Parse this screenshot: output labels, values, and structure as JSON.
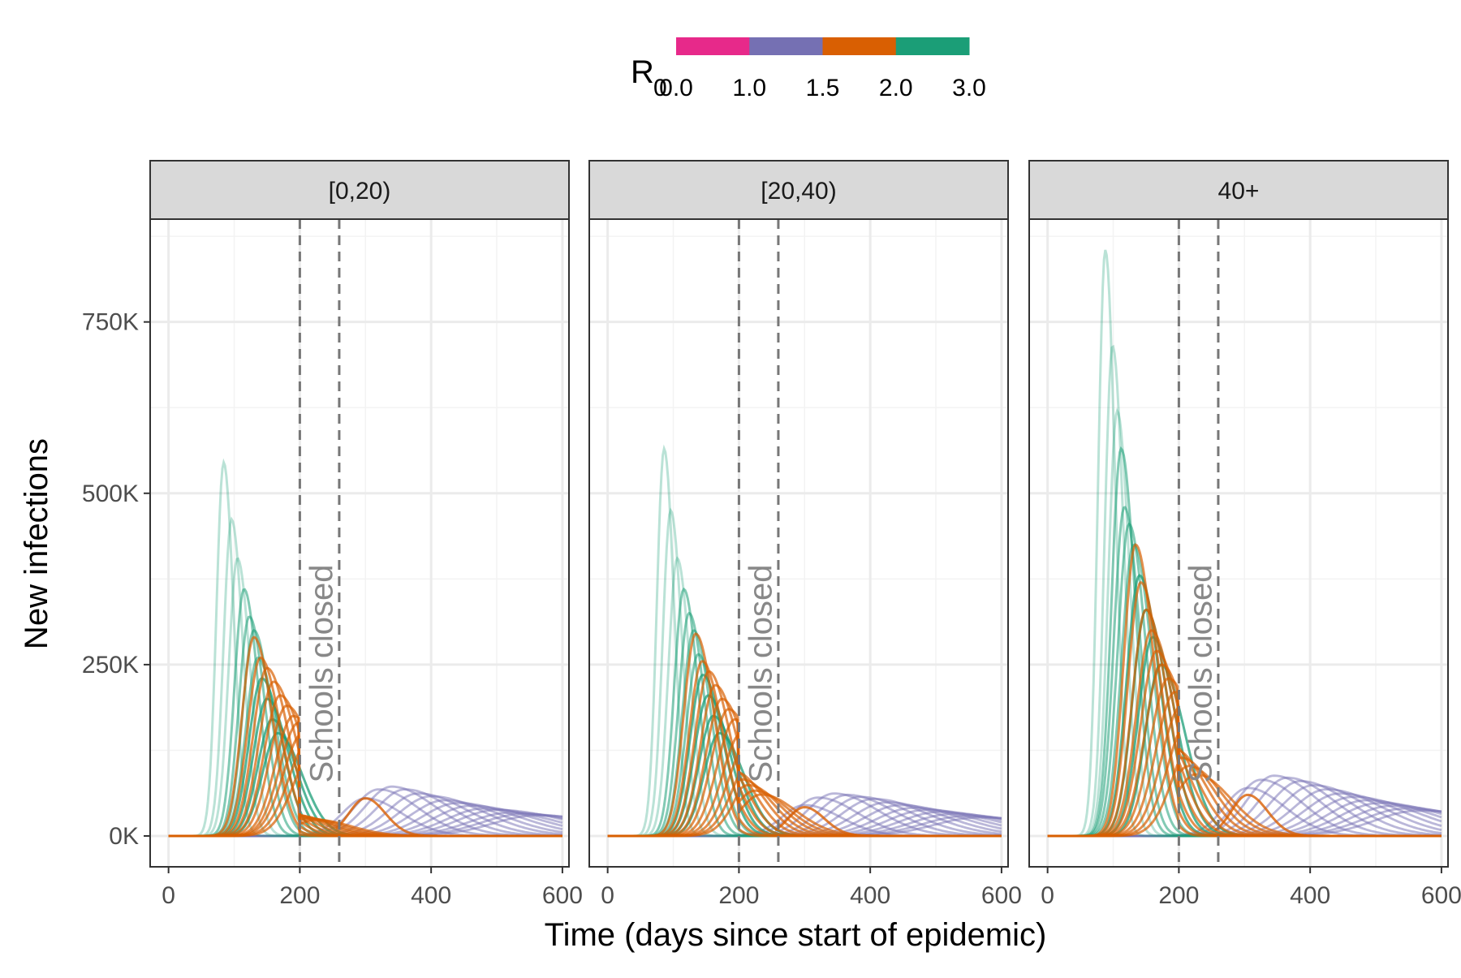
{
  "chart_data": {
    "type": "line",
    "xlabel": "Time (days since start of epidemic)",
    "ylabel": "New infections",
    "xlim": [
      -28,
      610
    ],
    "ylim": [
      -45000,
      900000
    ],
    "x_ticks": [
      0,
      200,
      400,
      600
    ],
    "x_tick_labels": [
      "0",
      "200",
      "400",
      "600"
    ],
    "y_ticks": [
      0,
      250000,
      500000,
      750000
    ],
    "y_tick_labels": [
      "0K",
      "250K",
      "500K",
      "750K"
    ],
    "grid": true,
    "legend": {
      "title": "R",
      "title_subscript": "0",
      "placement": "top",
      "breaks": [
        "0.0",
        "1.0",
        "1.5",
        "2.0",
        "3.0"
      ],
      "bins": [
        {
          "from": 0.0,
          "to": 1.0,
          "color": "#E7298A"
        },
        {
          "from": 1.0,
          "to": 1.5,
          "color": "#7570B3"
        },
        {
          "from": 1.5,
          "to": 2.0,
          "color": "#D95F02"
        },
        {
          "from": 2.0,
          "to": 3.0,
          "color": "#1B9E77"
        }
      ]
    },
    "annotation": {
      "text": "Schools closed",
      "x_lines": [
        200,
        260
      ]
    },
    "colors": {
      "low": "#E7298A",
      "mid": "#7570B3",
      "orange": "#D95F02",
      "green": "#1B9E77"
    },
    "panels": [
      {
        "label": "[0,20)",
        "green_peaks": [
          [
            84,
            545000
          ],
          [
            96,
            462000
          ],
          [
            105,
            405000
          ],
          [
            115,
            360000
          ],
          [
            123,
            320000
          ],
          [
            130,
            300000
          ],
          [
            136,
            260000
          ],
          [
            142,
            230000
          ],
          [
            150,
            200000
          ],
          [
            158,
            170000
          ],
          [
            166,
            150000
          ]
        ],
        "orange_peaks": [
          [
            130,
            290000
          ],
          [
            140,
            260000
          ],
          [
            150,
            245000
          ],
          [
            160,
            225000
          ],
          [
            170,
            205000
          ],
          [
            180,
            190000
          ],
          [
            190,
            175000
          ],
          [
            198,
            165000
          ],
          [
            205,
            150000
          ],
          [
            215,
            140000
          ],
          [
            225,
            130000
          ]
        ],
        "purple_peaks": [
          [
            300,
            55000
          ],
          [
            320,
            68000
          ],
          [
            340,
            72000
          ],
          [
            360,
            68000
          ],
          [
            380,
            62000
          ],
          [
            400,
            58000
          ],
          [
            420,
            52000
          ],
          [
            440,
            48000
          ],
          [
            460,
            44000
          ],
          [
            480,
            40000
          ],
          [
            500,
            38000
          ],
          [
            520,
            34000
          ],
          [
            540,
            32000
          ],
          [
            560,
            30000
          ]
        ],
        "orange_rebound": [
          300,
          55000
        ]
      },
      {
        "label": "[20,40)",
        "green_peaks": [
          [
            86,
            565000
          ],
          [
            96,
            475000
          ],
          [
            106,
            405000
          ],
          [
            116,
            360000
          ],
          [
            124,
            325000
          ],
          [
            131,
            300000
          ],
          [
            138,
            265000
          ],
          [
            145,
            235000
          ],
          [
            153,
            205000
          ],
          [
            161,
            175000
          ],
          [
            170,
            150000
          ]
        ],
        "orange_peaks": [
          [
            134,
            295000
          ],
          [
            144,
            255000
          ],
          [
            154,
            240000
          ],
          [
            164,
            220000
          ],
          [
            174,
            200000
          ],
          [
            184,
            185000
          ],
          [
            194,
            170000
          ],
          [
            204,
            150000
          ],
          [
            214,
            135000
          ],
          [
            224,
            120000
          ],
          [
            234,
            110000
          ]
        ],
        "purple_peaks": [
          [
            300,
            45000
          ],
          [
            320,
            56000
          ],
          [
            345,
            62000
          ],
          [
            365,
            60000
          ],
          [
            385,
            57000
          ],
          [
            405,
            54000
          ],
          [
            425,
            49000
          ],
          [
            445,
            45000
          ],
          [
            465,
            41000
          ],
          [
            485,
            38000
          ],
          [
            505,
            35000
          ],
          [
            525,
            32000
          ],
          [
            545,
            29000
          ],
          [
            565,
            27000
          ]
        ],
        "orange_rebound": [
          300,
          42000
        ]
      },
      {
        "label": "40+",
        "green_peaks": [
          [
            88,
            855000
          ],
          [
            99,
            715000
          ],
          [
            106,
            620000
          ],
          [
            112,
            565000
          ],
          [
            117,
            480000
          ],
          [
            124,
            455000
          ],
          [
            131,
            425000
          ],
          [
            140,
            380000
          ],
          [
            150,
            330000
          ],
          [
            160,
            290000
          ],
          [
            172,
            250000
          ]
        ],
        "orange_peaks": [
          [
            134,
            425000
          ],
          [
            142,
            370000
          ],
          [
            150,
            330000
          ],
          [
            158,
            300000
          ],
          [
            166,
            270000
          ],
          [
            174,
            250000
          ],
          [
            184,
            230000
          ],
          [
            194,
            210000
          ],
          [
            204,
            190000
          ],
          [
            215,
            170000
          ],
          [
            226,
            150000
          ]
        ],
        "purple_peaks": [
          [
            305,
            70000
          ],
          [
            325,
            82000
          ],
          [
            345,
            88000
          ],
          [
            365,
            85000
          ],
          [
            385,
            80000
          ],
          [
            405,
            74000
          ],
          [
            425,
            68000
          ],
          [
            445,
            62000
          ],
          [
            465,
            57000
          ],
          [
            485,
            52000
          ],
          [
            505,
            48000
          ],
          [
            525,
            44000
          ],
          [
            545,
            40000
          ],
          [
            565,
            37000
          ]
        ],
        "orange_rebound": [
          305,
          60000
        ]
      }
    ]
  }
}
